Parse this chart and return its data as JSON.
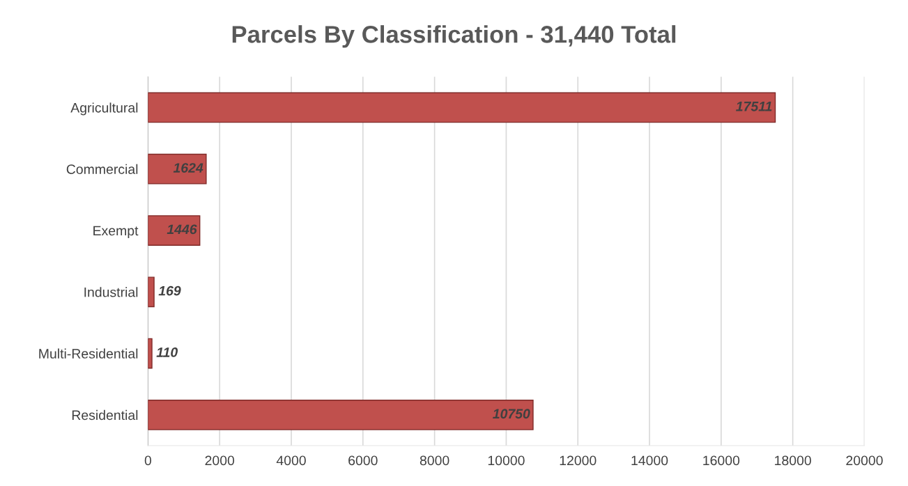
{
  "chart_data": {
    "type": "bar",
    "orientation": "horizontal",
    "title": "Parcels By Classification - 31,440 Total",
    "categories": [
      "Agricultural",
      "Commercial",
      "Exempt",
      "Industrial",
      "Multi-Residential",
      "Residential"
    ],
    "values": [
      17511,
      1624,
      1446,
      169,
      110,
      10750
    ],
    "color": "#c0504d",
    "data_labels": true,
    "xlim": [
      0,
      20000
    ],
    "xticks": [
      0,
      2000,
      4000,
      6000,
      8000,
      10000,
      12000,
      14000,
      16000,
      18000,
      20000
    ],
    "grid": "x",
    "legend": false
  }
}
